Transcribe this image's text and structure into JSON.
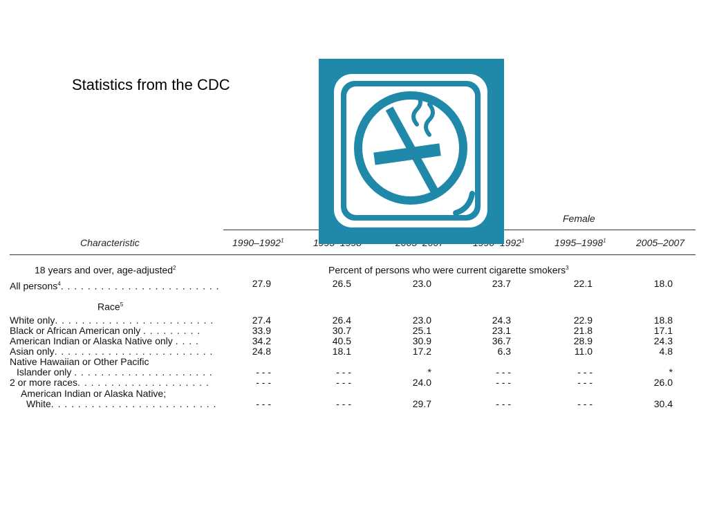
{
  "slide": {
    "title": "Statistics from the CDC"
  },
  "icon": {
    "name": "no-smoking-icon",
    "color": "#2088a8"
  },
  "table": {
    "group_header_female": "Female",
    "characteristic_header": "Characteristic",
    "columns": [
      {
        "label": "1990–1992",
        "sup": "1"
      },
      {
        "label": "1995–1998",
        "sup": "1"
      },
      {
        "label": "2005–2007",
        "sup": ""
      },
      {
        "label": "1990–1992",
        "sup": "1"
      },
      {
        "label": "1995–1998",
        "sup": "1"
      },
      {
        "label": "2005–2007",
        "sup": ""
      }
    ],
    "section_age_label": "18 years and over, age-adjusted",
    "section_age_sup": "2",
    "measure_label": "Percent of persons who were current cigarette smokers",
    "measure_sup": "3",
    "race_label": "Race",
    "race_sup": "5",
    "rows": [
      {
        "label": "All persons",
        "sup": "4",
        "dots": ". . . . . . . . . . . . . . . . . . . . . . . .",
        "values": [
          "27.9",
          "26.5",
          "23.0",
          "23.7",
          "22.1",
          "18.0"
        ]
      },
      {
        "label": "White only",
        "sup": "",
        "dots": ". . . . . . . . . . . . . . . . . . . . . . . .",
        "values": [
          "27.4",
          "26.4",
          "23.0",
          "24.3",
          "22.9",
          "18.8"
        ]
      },
      {
        "label": "Black or African American only",
        "sup": "",
        "dots": ". . . . . . . . .",
        "values": [
          "33.9",
          "30.7",
          "25.1",
          "23.1",
          "21.8",
          "17.1"
        ]
      },
      {
        "label": "American Indian or Alaska Native only",
        "sup": "",
        "dots": ". . . .",
        "values": [
          "34.2",
          "40.5",
          "30.9",
          "36.7",
          "28.9",
          "24.3"
        ]
      },
      {
        "label": "Asian only",
        "sup": "",
        "dots": ". . . . . . . . . . . . . . . . . . . . . . . .",
        "values": [
          "24.8",
          "18.1",
          "17.2",
          "6.3",
          "11.0",
          "4.8"
        ]
      },
      {
        "label": "Native Hawaiian or Other Pacific",
        "sup": "",
        "dots": "",
        "values": []
      },
      {
        "label": "Islander only",
        "sup": "",
        "dots": ". . . . . . . . . . . . . . . . . . . . .",
        "values": [
          "- - -",
          "- - -",
          "*",
          "- - -",
          "- - -",
          "*"
        ]
      },
      {
        "label": "2 or more races",
        "sup": "",
        "dots": ". . . . . . . . . . . . . . . . . . . .",
        "values": [
          "- - -",
          "- - -",
          "24.0",
          "- - -",
          "- - -",
          "26.0"
        ]
      },
      {
        "label": "American Indian or Alaska Native;",
        "sup": "",
        "dots": "",
        "values": []
      },
      {
        "label": "White",
        "sup": "",
        "dots": ". . . . . . . . . . . . . . . . . . . . . . . . .",
        "values": [
          "- - -",
          "- - -",
          "29.7",
          "- - -",
          "- - -",
          "30.4"
        ]
      }
    ]
  }
}
